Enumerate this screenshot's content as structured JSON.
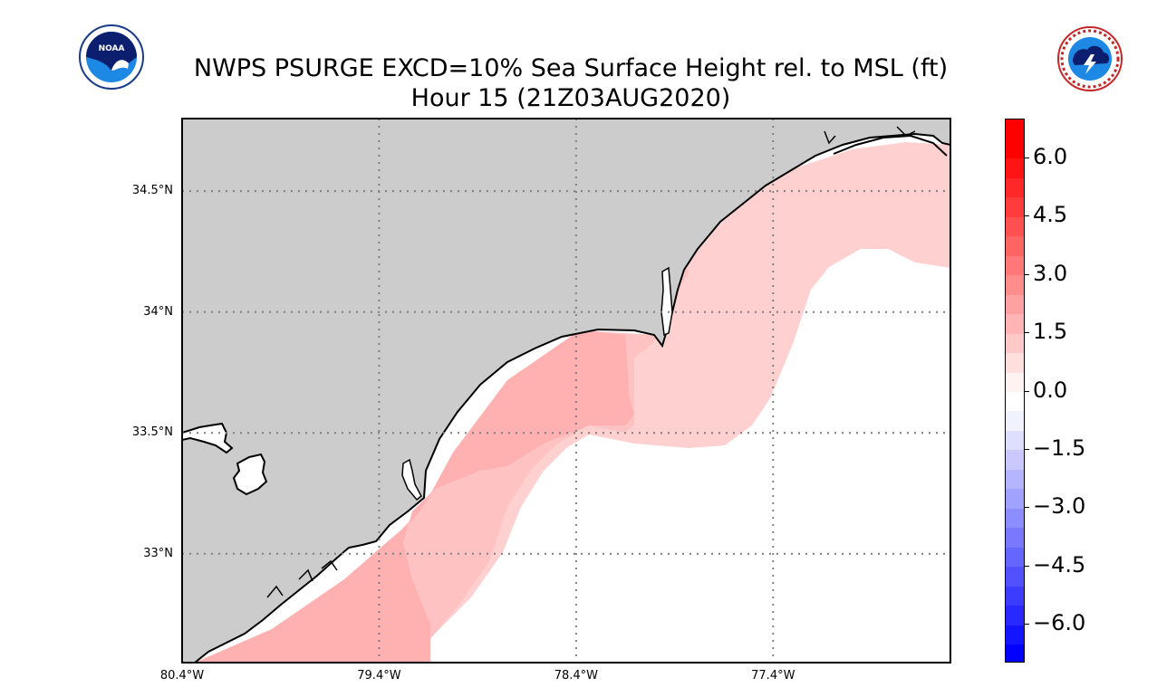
{
  "title": {
    "line1": "NWPS PSURGE EXCD=10% Sea Surface Height rel. to MSL (ft)",
    "line2": "Hour 15 (21Z03AUG2020)"
  },
  "logos": {
    "left": {
      "icon": "noaa-logo",
      "text": "NOAA"
    },
    "right": {
      "icon": "nws-logo",
      "text": "NATIONAL WEATHER SERVICE"
    }
  },
  "map": {
    "lat_range": [
      32.55,
      34.8
    ],
    "lon_range": [
      -80.4,
      -76.5
    ],
    "lat_labels": [
      {
        "value": 34.5,
        "label": "34.5°N"
      },
      {
        "value": 34.0,
        "label": "34°N"
      },
      {
        "value": 33.5,
        "label": "33.5°N"
      },
      {
        "value": 33.0,
        "label": "33°N"
      }
    ],
    "lon_labels": [
      {
        "value": -80.4,
        "label": "80.4°W"
      },
      {
        "value": -79.4,
        "label": "79.4°W"
      },
      {
        "value": -78.4,
        "label": "78.4°W"
      },
      {
        "value": -77.4,
        "label": "77.4°W"
      }
    ],
    "colors": {
      "land": "#cccccc",
      "ocean_zero": "#ffffff",
      "surge_low": "#ffd0d0",
      "surge_mid": "#ffc2c2",
      "surge_high": "#ffb1b1",
      "coast": "#000000",
      "grid": "#7f7f7f"
    }
  },
  "colorbar": {
    "min": -7,
    "max": 7,
    "ticks": [
      {
        "value": 6.0,
        "label": "6.0"
      },
      {
        "value": 4.5,
        "label": "4.5"
      },
      {
        "value": 3.0,
        "label": "3.0"
      },
      {
        "value": 1.5,
        "label": "1.5"
      },
      {
        "value": 0.0,
        "label": "0.0"
      },
      {
        "value": -1.5,
        "label": "−1.5"
      },
      {
        "value": -3.0,
        "label": "−3.0"
      },
      {
        "value": -4.5,
        "label": "−4.5"
      },
      {
        "value": -6.0,
        "label": "−6.0"
      }
    ],
    "bands": [
      "#0000ff",
      "#1414ff",
      "#2828ff",
      "#3c3cff",
      "#5151ff",
      "#6565ff",
      "#7979ff",
      "#8d8dff",
      "#a1a1ff",
      "#b5b5ff",
      "#c9c9ff",
      "#dedeff",
      "#f2f2ff",
      "#ffffff",
      "#fff2f2",
      "#ffdede",
      "#ffc9c9",
      "#ffb5b5",
      "#ffa1a1",
      "#ff8d8d",
      "#ff7979",
      "#ff6565",
      "#ff5151",
      "#ff3c3c",
      "#ff2828",
      "#ff1414",
      "#ff0000",
      "#ff0000"
    ]
  }
}
